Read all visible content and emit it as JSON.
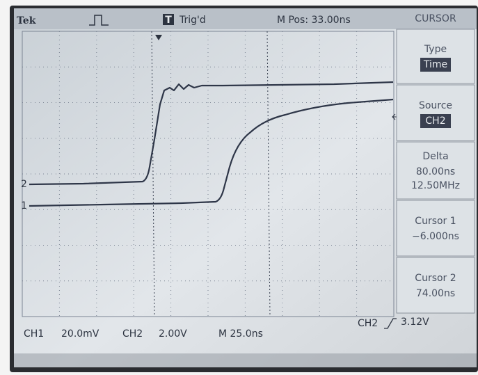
{
  "header": {
    "brand": "Tek",
    "trigger_icon": "T",
    "trigger_status": "Trig'd",
    "position": "M Pos: 33.00ns",
    "menu_title": "CURSOR"
  },
  "menu": [
    {
      "label": "Type",
      "value": "Time"
    },
    {
      "label": "Source",
      "value": "CH2"
    },
    {
      "label": "Delta",
      "lines": [
        "80.00ns",
        "12.50MHz"
      ]
    },
    {
      "label": "Cursor 1",
      "lines": [
        "−6.000ns"
      ]
    },
    {
      "label": "Cursor 2",
      "lines": [
        "74.00ns"
      ]
    }
  ],
  "markers": {
    "ch2": "2",
    "ch1": "1"
  },
  "footer": {
    "ch1": "CH1",
    "ch1_scale": "20.0mV",
    "ch2": "CH2",
    "ch2_scale": "2.00V",
    "timebase": "M 25.0ns",
    "trig_source": "CH2",
    "trig_level": "3.12V"
  }
}
